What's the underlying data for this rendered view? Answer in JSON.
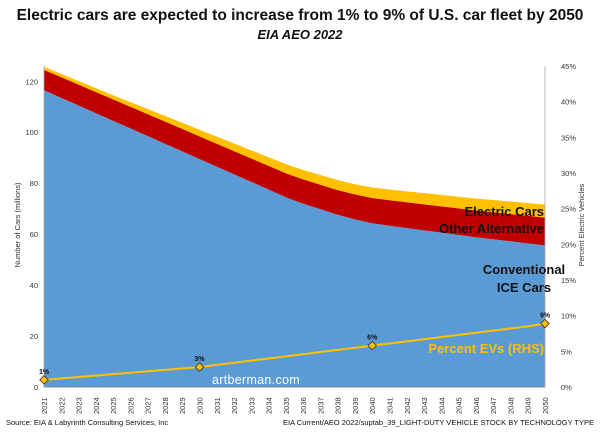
{
  "chart_data": {
    "type": "area",
    "title": "Electric cars are expected to increase from 1% to 9% of U.S. car fleet by 2050",
    "subtitle": "EIA AEO 2022",
    "ylabel": "Number of Cars (millions)",
    "y2label": "Percent Electric Vehicles",
    "ylim": [
      0,
      126
    ],
    "y_ticks": [
      0,
      20,
      40,
      60,
      80,
      100,
      120
    ],
    "y2lim": [
      0,
      0.45
    ],
    "y2_ticks": [
      "0%",
      "5%",
      "10%",
      "15%",
      "20%",
      "25%",
      "30%",
      "35%",
      "40%",
      "45%"
    ],
    "categories": [
      "2021",
      "2022",
      "2023",
      "2024",
      "2025",
      "2026",
      "2027",
      "2028",
      "2029",
      "2030",
      "2031",
      "2032",
      "2033",
      "2034",
      "2035",
      "2036",
      "2037",
      "2038",
      "2039",
      "2040",
      "2041",
      "2042",
      "2043",
      "2044",
      "2045",
      "2046",
      "2047",
      "2048",
      "2049",
      "2050"
    ],
    "series": [
      {
        "name": "Conventional ICE Cars",
        "color": "#5b9bd5",
        "values": [
          116.5,
          113.5,
          110.5,
          107.5,
          104.5,
          101.5,
          98.5,
          95.5,
          92.5,
          89.5,
          86.5,
          83.5,
          80.5,
          77.5,
          74.5,
          72,
          69.8,
          67.6,
          65.8,
          64.3,
          63.3,
          62.4,
          61.5,
          60.6,
          59.7,
          58.8,
          58,
          57.2,
          56.4,
          55.6
        ]
      },
      {
        "name": "Other Alternative",
        "color": "#c00000",
        "values": [
          8,
          8.1,
          8.2,
          8.3,
          8.4,
          8.5,
          8.6,
          8.7,
          8.8,
          8.9,
          9,
          9.1,
          9.2,
          9.3,
          9.4,
          9.5,
          9.6,
          9.7,
          9.8,
          9.9,
          10,
          10.1,
          10.2,
          10.3,
          10.4,
          10.5,
          10.6,
          10.7,
          10.8,
          10.9
        ]
      },
      {
        "name": "Electric Cars",
        "color": "#ffc000",
        "values": [
          1.2,
          1.3,
          1.4,
          1.5,
          1.6,
          1.8,
          2,
          2.2,
          2.4,
          2.6,
          2.8,
          3,
          3.2,
          3.4,
          3.6,
          3.7,
          3.8,
          3.9,
          4,
          4.1,
          4.2,
          4.3,
          4.4,
          4.5,
          4.6,
          4.7,
          4.8,
          4.9,
          5,
          5.1
        ]
      },
      {
        "name": "Percent EVs (RHS)",
        "color": "#ffc000",
        "axis": "right",
        "values": [
          0.01,
          0.012,
          0.014,
          0.016,
          0.018,
          0.02,
          0.022,
          0.024,
          0.026,
          0.028,
          0.031,
          0.034,
          0.037,
          0.04,
          0.043,
          0.046,
          0.049,
          0.052,
          0.055,
          0.058,
          0.061,
          0.064,
          0.067,
          0.07,
          0.073,
          0.076,
          0.079,
          0.082,
          0.085,
          0.089
        ]
      }
    ],
    "annotations": [
      {
        "year": "2021",
        "label": "1%"
      },
      {
        "year": "2030",
        "label": "3%"
      },
      {
        "year": "2040",
        "label": "6%"
      },
      {
        "year": "2050",
        "label": "9%"
      }
    ],
    "series_labels": {
      "electric": "Electric Cars",
      "other": "Other Alternative",
      "ice_line1": "Conventional",
      "ice_line2": "ICE Cars",
      "pct": "Percent EVs (RHS)"
    }
  },
  "watermark": "artberman.com",
  "source_left": "Source: EIA & Labyrinth Consulting Services, Inc",
  "source_right": "EIA Current/AEO 2022/suptab_39_LIGHT-DUTY VEHICLE STOCK BY TECHNOLOGY TYPE"
}
